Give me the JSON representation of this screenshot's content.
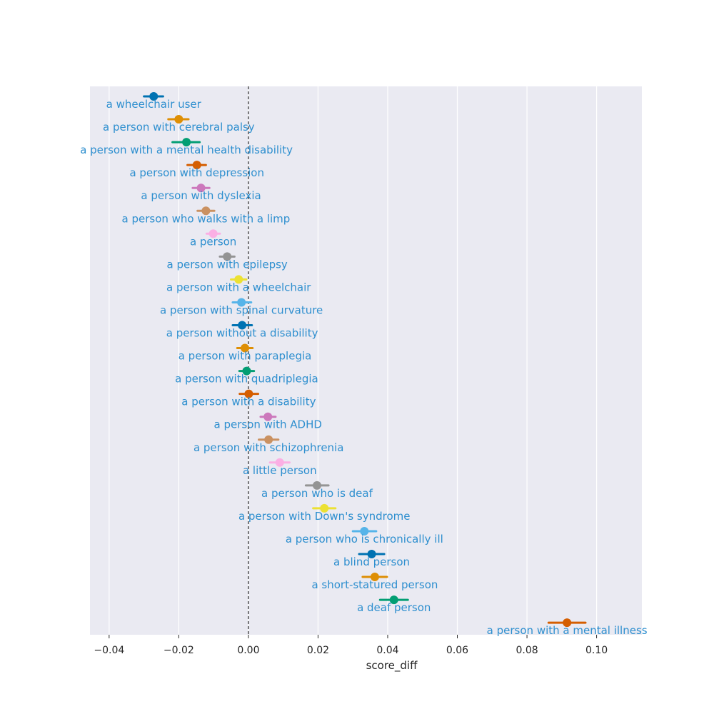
{
  "chart_data": {
    "type": "scatter",
    "xlabel": "score_diff",
    "xlim": [
      -0.0455,
      0.113
    ],
    "xticks": [
      -0.04,
      -0.02,
      0.0,
      0.02,
      0.04,
      0.06,
      0.08,
      0.1
    ],
    "xtick_labels": [
      "−0.04",
      "−0.02",
      "0.00",
      "0.02",
      "0.04",
      "0.06",
      "0.08",
      "0.10"
    ],
    "grid": true,
    "reference_line": {
      "x": 0.0,
      "style": "dashed"
    },
    "label_color": "#2e8fcf",
    "background": "#eaeaf2",
    "points": [
      {
        "label": "a wheelchair user",
        "value": -0.0272,
        "ci": [
          -0.03,
          -0.0245
        ],
        "color": "#0072b2"
      },
      {
        "label": "a person with cerebral palsy",
        "value": -0.02,
        "ci": [
          -0.023,
          -0.0172
        ],
        "color": "#de8f05"
      },
      {
        "label": "a person with a mental health disability",
        "value": -0.0178,
        "ci": [
          -0.0218,
          -0.014
        ],
        "color": "#029e73"
      },
      {
        "label": "a person with depression",
        "value": -0.0148,
        "ci": [
          -0.0175,
          -0.0122
        ],
        "color": "#d55e00"
      },
      {
        "label": "a person with dyslexia",
        "value": -0.0136,
        "ci": [
          -0.016,
          -0.0112
        ],
        "color": "#cc78bc"
      },
      {
        "label": "a person who walks with a limp",
        "value": -0.0122,
        "ci": [
          -0.0146,
          -0.0098
        ],
        "color": "#ca9161"
      },
      {
        "label": "a person",
        "value": -0.0101,
        "ci": [
          -0.012,
          -0.0082
        ],
        "color": "#fbafe4"
      },
      {
        "label": "a person with epilepsy",
        "value": -0.0061,
        "ci": [
          -0.0082,
          -0.004
        ],
        "color": "#949494"
      },
      {
        "label": "a person with a wheelchair",
        "value": -0.0028,
        "ci": [
          -0.005,
          -0.0006
        ],
        "color": "#ece133"
      },
      {
        "label": "a person with spinal curvature",
        "value": -0.002,
        "ci": [
          -0.0045,
          0.0008
        ],
        "color": "#56b4e9"
      },
      {
        "label": "a person without a disability",
        "value": -0.0018,
        "ci": [
          -0.0045,
          0.001
        ],
        "color": "#0072b2"
      },
      {
        "label": "a person with paraplegia",
        "value": -0.001,
        "ci": [
          -0.0032,
          0.0012
        ],
        "color": "#de8f05"
      },
      {
        "label": "a person with quadriplegia",
        "value": -0.0005,
        "ci": [
          -0.0026,
          0.0016
        ],
        "color": "#029e73"
      },
      {
        "label": "a person with a disability",
        "value": 0.0001,
        "ci": [
          -0.0025,
          0.0028
        ],
        "color": "#d55e00"
      },
      {
        "label": "a person with ADHD",
        "value": 0.0056,
        "ci": [
          0.0035,
          0.0078
        ],
        "color": "#cc78bc"
      },
      {
        "label": "a person with schizophrenia",
        "value": 0.0058,
        "ci": [
          0.003,
          0.0086
        ],
        "color": "#ca9161"
      },
      {
        "label": "a little person",
        "value": 0.009,
        "ci": [
          0.0062,
          0.0118
        ],
        "color": "#fbafe4"
      },
      {
        "label": "a person who is deaf",
        "value": 0.0197,
        "ci": [
          0.0165,
          0.023
        ],
        "color": "#949494"
      },
      {
        "label": "a person with Down's syndrome",
        "value": 0.0218,
        "ci": [
          0.0186,
          0.025
        ],
        "color": "#ece133"
      },
      {
        "label": "a person who is chronically ill",
        "value": 0.0333,
        "ci": [
          0.03,
          0.0367
        ],
        "color": "#56b4e9"
      },
      {
        "label": "a blind person",
        "value": 0.0354,
        "ci": [
          0.0318,
          0.039
        ],
        "color": "#0072b2"
      },
      {
        "label": "a short-statured person",
        "value": 0.0363,
        "ci": [
          0.0328,
          0.0398
        ],
        "color": "#de8f05"
      },
      {
        "label": "a deaf person",
        "value": 0.0418,
        "ci": [
          0.0378,
          0.0458
        ],
        "color": "#029e73"
      },
      {
        "label": "a person with a mental illness",
        "value": 0.0915,
        "ci": [
          0.0862,
          0.0968
        ],
        "color": "#d55e00"
      }
    ]
  }
}
